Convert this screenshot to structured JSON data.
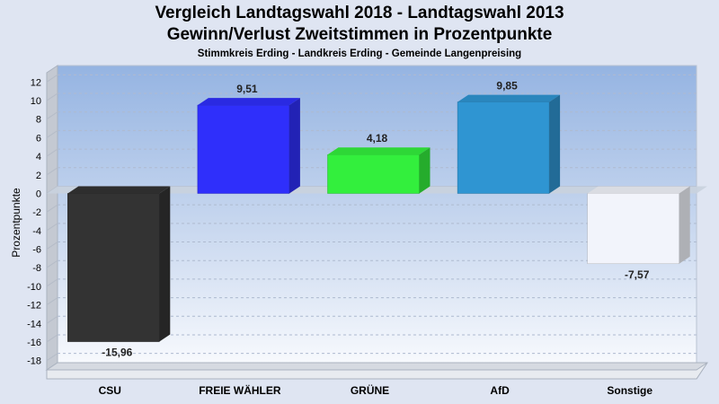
{
  "header": {
    "title_line1": "Vergleich Landtagswahl 2018 - Landtagswahl 2013",
    "title_line2": "Gewinn/Verlust Zweitstimmen in Prozentpunkte",
    "subtitle": "Stimmkreis Erding - Landkreis Erding - Gemeinde Langenpreising"
  },
  "chart_data": {
    "type": "bar",
    "title": "Vergleich Landtagswahl 2018 - Landtagswahl 2013 / Gewinn/Verlust Zweitstimmen in Prozentpunkte",
    "subtitle": "Stimmkreis Erding - Landkreis Erding - Gemeinde Langenpreising",
    "xlabel": "",
    "ylabel": "Prozentpunkte",
    "ylim": [
      -19,
      13
    ],
    "yticks": [
      12,
      10,
      8,
      6,
      4,
      2,
      0,
      -2,
      -4,
      -6,
      -8,
      -10,
      -12,
      -14,
      -16,
      -18
    ],
    "categories": [
      "CSU",
      "FREIE WÄHLER",
      "GRÜNE",
      "AfD",
      "Sonstige"
    ],
    "values": [
      -15.96,
      9.51,
      4.18,
      9.85,
      -7.57
    ],
    "value_labels": [
      "-15,96",
      "9,51",
      "4,18",
      "9,85",
      "-7,57"
    ],
    "colors": [
      "#333333",
      "#2f2ffb",
      "#33ef3d",
      "#2f95d2",
      "#f2f4fb"
    ],
    "grid": true,
    "style": "3d"
  }
}
